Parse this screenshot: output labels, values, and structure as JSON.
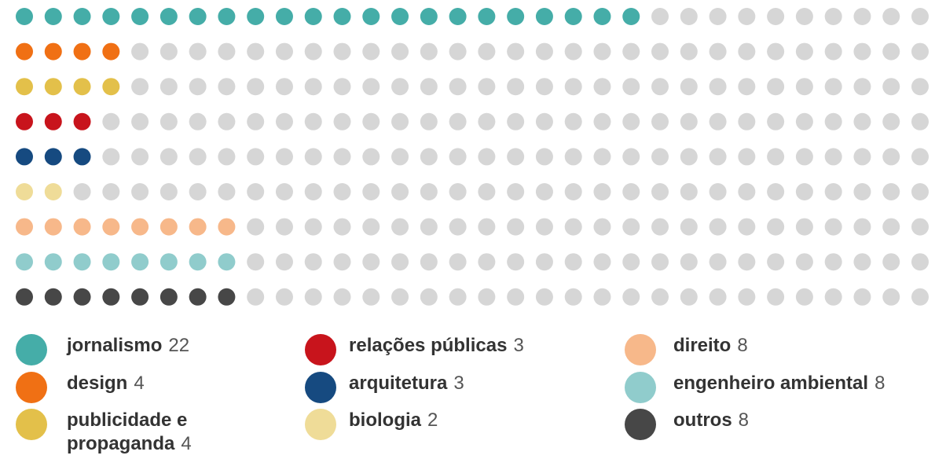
{
  "chart_data": {
    "type": "dot_matrix",
    "categories": [
      "jornalismo",
      "design",
      "publicidade e propaganda",
      "relações públicas",
      "arquitetura",
      "biologia",
      "direito",
      "engenheiro ambiental",
      "outros"
    ],
    "values": [
      22,
      4,
      4,
      3,
      3,
      2,
      8,
      8,
      8
    ],
    "colors": [
      "#45ada8",
      "#f07014",
      "#e3c04a",
      "#c8141c",
      "#164a80",
      "#efdc98",
      "#f7b88a",
      "#90cccc",
      "#474747"
    ],
    "empty_color": "#d6d6d6"
  }
}
